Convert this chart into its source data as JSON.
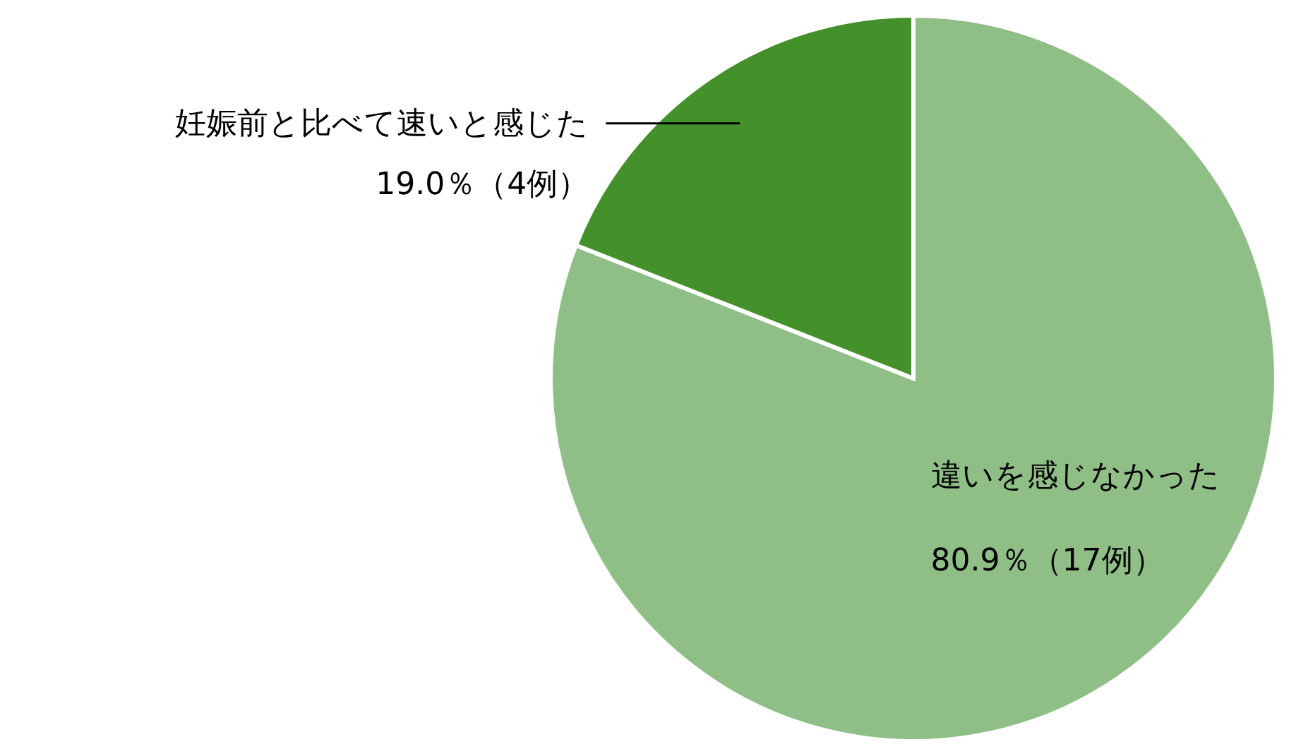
{
  "chart_data": {
    "type": "pie",
    "categories": [
      "違いを感じなかった",
      "妊娠前と比べて速いと感じた"
    ],
    "values": [
      80.9,
      19.0
    ],
    "colors": [
      "#8fbf86",
      "#44902a"
    ],
    "value_labels": [
      "80.9％（17例）",
      "19.0％（4例）"
    ]
  }
}
